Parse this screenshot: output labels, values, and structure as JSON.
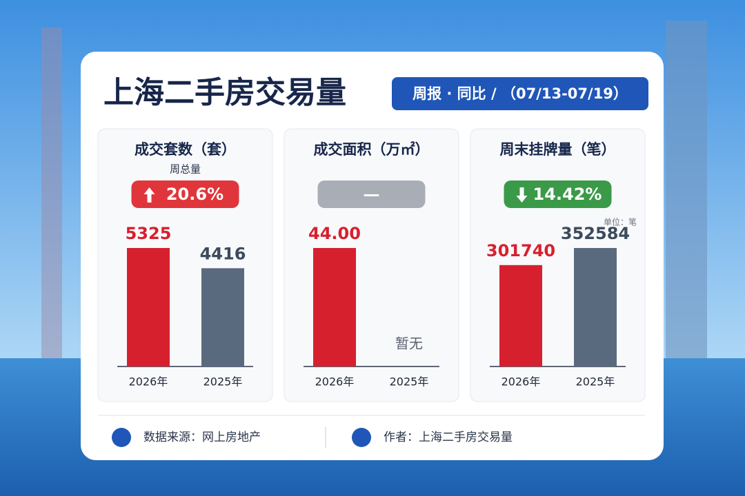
{
  "header": {
    "title": "上海二手房交易量",
    "badge": "周报 · 同比 / （07/13-07/19）"
  },
  "chart_data": [
    {
      "type": "bar",
      "title": "成交套数（套）",
      "subtitle": "周总量",
      "change": "20.6%",
      "trend": "up",
      "change_color": "#e0353b",
      "categories": [
        "2026年",
        "2025年"
      ],
      "values": [
        5325,
        4416
      ],
      "colors": [
        "#d7202e",
        "#5a6a7e"
      ]
    },
    {
      "type": "bar",
      "title": "成交面积（万㎡）",
      "change": "—",
      "trend": "none",
      "change_color": "#a9aeb6",
      "categories": [
        "2026年",
        "2025年"
      ],
      "values": [
        44,
        null
      ],
      "value_labels": [
        "44.00",
        "暂无"
      ],
      "colors": [
        "#d7202e",
        "#5a6a7e"
      ]
    },
    {
      "type": "bar",
      "title": "周末挂牌量（笔）",
      "change": "14.42%",
      "trend": "down",
      "change_color": "#3a9a48",
      "unit_note": "单位：笔",
      "categories": [
        "2026年",
        "2025年"
      ],
      "values": [
        301740,
        352584
      ],
      "colors": [
        "#d7202e",
        "#5a6a7e"
      ]
    }
  ],
  "footer": {
    "source": "数据来源：网上房地产",
    "author": "作者：上海二手房交易量"
  }
}
